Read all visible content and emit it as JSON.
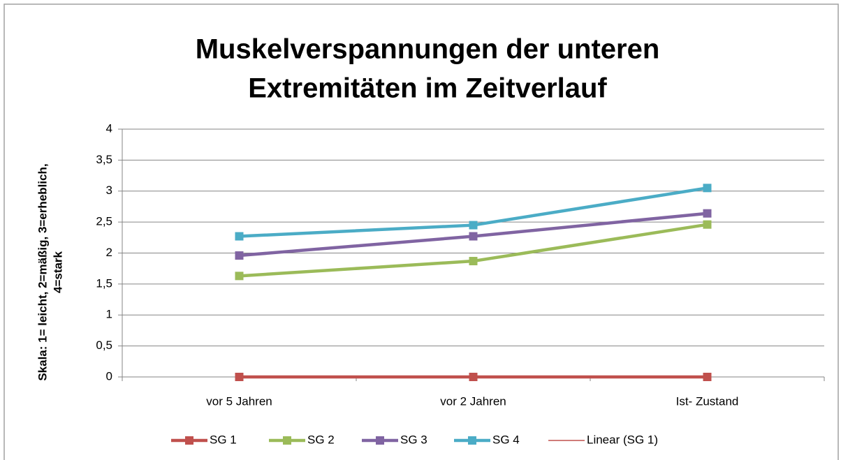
{
  "chart_data": {
    "type": "line",
    "title": [
      "Muskelverspannungen der unteren",
      "Extremitäten im Zeitverlauf"
    ],
    "ylabel": [
      "Skala: 1= leicht, 2=mäßig, 3=erheblich,",
      "4=stark"
    ],
    "categories": [
      "vor 5 Jahren",
      "vor 2 Jahren",
      "Ist- Zustand"
    ],
    "series": [
      {
        "name": "SG 1",
        "color": "#c0504d",
        "values": [
          0,
          0,
          0
        ],
        "markers": true
      },
      {
        "name": "SG 2",
        "color": "#9bbb59",
        "values": [
          1.63,
          1.87,
          2.46
        ],
        "markers": true
      },
      {
        "name": "SG 3",
        "color": "#8064a2",
        "values": [
          1.96,
          2.27,
          2.64
        ],
        "markers": true
      },
      {
        "name": "SG 4",
        "color": "#4bacc6",
        "values": [
          2.27,
          2.45,
          3.05
        ],
        "markers": true
      },
      {
        "name": "Linear (SG 1)",
        "color": "#c0504d",
        "values": [
          0,
          0,
          0
        ],
        "markers": false
      }
    ],
    "ylim": [
      0,
      4
    ],
    "yticks": [
      0,
      {
        "value": 0.5,
        "label": "0,5"
      },
      1,
      {
        "value": 1.5,
        "label": "1,5"
      },
      2,
      {
        "value": 2.5,
        "label": "2,5"
      },
      3,
      {
        "value": 3.5,
        "label": "3,5"
      },
      4
    ],
    "grid": true,
    "legend": "bottom"
  }
}
